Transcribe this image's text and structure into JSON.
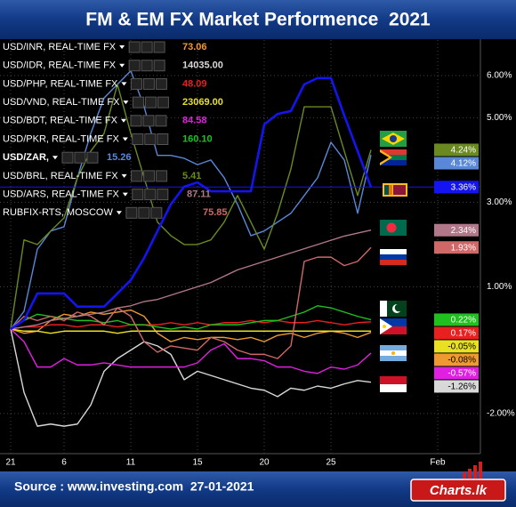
{
  "chart_data": {
    "type": "line",
    "title": "FM & EM FX Market Performence  2021",
    "source": "Source : www.investing.com  27-01-2021",
    "logo": "Charts.lk",
    "categories": [
      "21",
      null,
      null,
      null,
      "6",
      null,
      null,
      null,
      null,
      "11",
      null,
      null,
      null,
      null,
      "15",
      null,
      null,
      null,
      null,
      "20",
      null,
      null,
      null,
      null,
      "25",
      null,
      null,
      null,
      null,
      null,
      null,
      null,
      "Feb"
    ],
    "ylim": [
      -2.95,
      6.84
    ],
    "yticks": [
      {
        "value": 6,
        "label": "6.00%"
      },
      {
        "value": 5,
        "label": "5.00%"
      },
      {
        "value": 3,
        "label": "3.00%"
      },
      {
        "value": 1,
        "label": "1.00%"
      },
      {
        "value": -2,
        "label": "-2.00%"
      }
    ],
    "grid": true,
    "series": [
      {
        "name": "USD/INR, REAL-TIME FX",
        "quote": "73.06",
        "color": "#ee9a30",
        "end_label": "-0.08%",
        "values": [
          0,
          -0.1,
          -0.05,
          0.2,
          0.35,
          0.3,
          0.4,
          0.35,
          0.4,
          0.45,
          0.3,
          -0.1,
          -0.3,
          -0.2,
          -0.25,
          -0.2,
          -0.2,
          -0.25,
          -0.2,
          -0.3,
          -0.15,
          -0.1,
          -0.2,
          -0.1,
          -0.05,
          -0.1,
          -0.2,
          -0.08,
          null,
          null,
          null,
          null,
          null
        ]
      },
      {
        "name": "USD/IDR, REAL-TIME FX",
        "quote": "14035.00",
        "color": "#d8d8d8",
        "end_label": "-1.26%",
        "values": [
          0,
          -1.5,
          -2.3,
          -2.25,
          -2.3,
          -2.25,
          -1.8,
          -1.0,
          -0.7,
          -0.5,
          -0.3,
          -0.4,
          -0.6,
          -1.2,
          -1.0,
          -1.1,
          -1.2,
          -1.3,
          -1.4,
          -1.45,
          -1.6,
          -1.4,
          -1.45,
          -1.35,
          -1.4,
          -1.3,
          -1.22,
          -1.26,
          null,
          null,
          null,
          null,
          null
        ]
      },
      {
        "name": "USD/PHP, REAL-TIME FX",
        "quote": "48.09",
        "color": "#e82020",
        "end_label": "0.17%",
        "values": [
          0,
          0.05,
          0.05,
          0.1,
          0.1,
          0.05,
          0.1,
          0.1,
          0.05,
          0.1,
          0.1,
          0.1,
          0.15,
          0.1,
          0.15,
          0.1,
          0.15,
          0.15,
          0.2,
          0.15,
          0.2,
          0.15,
          0.15,
          0.2,
          0.15,
          0.1,
          0.15,
          0.17,
          null,
          null,
          null,
          null,
          null
        ]
      },
      {
        "name": "USD/VND, REAL-TIME FX",
        "quote": "23069.00",
        "color": "#e8e020",
        "end_label": "-0.05%",
        "values": [
          0,
          -0.05,
          -0.05,
          -0.1,
          -0.05,
          -0.05,
          -0.05,
          -0.05,
          -0.1,
          -0.05,
          -0.05,
          -0.05,
          -0.05,
          -0.05,
          -0.05,
          -0.05,
          -0.05,
          -0.05,
          -0.05,
          -0.05,
          -0.05,
          -0.05,
          -0.05,
          -0.05,
          -0.05,
          -0.05,
          -0.05,
          -0.05,
          null,
          null,
          null,
          null,
          null
        ]
      },
      {
        "name": "USD/BDT, REAL-TIME FX",
        "quote": "84.58",
        "color": "#e020e0",
        "end_label": "-0.57%",
        "values": [
          0,
          -0.3,
          -0.9,
          -0.9,
          -0.7,
          -0.85,
          -0.85,
          -0.8,
          -0.85,
          -0.9,
          -0.9,
          -0.9,
          -0.9,
          -0.9,
          -0.8,
          -0.5,
          -0.35,
          -0.7,
          -0.7,
          -0.75,
          -0.9,
          -0.9,
          -1.0,
          -1.05,
          -0.9,
          -0.95,
          -0.85,
          -0.57,
          null,
          null,
          null,
          null,
          null
        ]
      },
      {
        "name": "USD/PKR, REAL-TIME FX",
        "quote": "160.10",
        "color": "#20c020",
        "end_label": "0.22%",
        "values": [
          0,
          0.2,
          0.35,
          0.3,
          0.25,
          0.2,
          0.2,
          0.15,
          0.2,
          0.1,
          0.1,
          0.05,
          0.0,
          0.05,
          0.0,
          0.1,
          0.1,
          0.1,
          0.15,
          0.2,
          0.2,
          0.3,
          0.4,
          0.55,
          0.5,
          0.4,
          0.3,
          0.22,
          null,
          null,
          null,
          null,
          null
        ]
      },
      {
        "name": "USD/ZAR,",
        "quote": "15.26",
        "color": "#5a88d8",
        "end_label": "4.12%",
        "values": [
          0,
          0.42,
          1.89,
          2.32,
          2.42,
          3.58,
          4.63,
          5.47,
          5.79,
          6.11,
          5.26,
          4.11,
          4.11,
          4.04,
          3.89,
          4.0,
          3.58,
          2.95,
          2.21,
          2.32,
          2.53,
          2.74,
          3.16,
          3.58,
          4.42,
          4.0,
          2.74,
          4.12,
          null,
          null,
          null,
          null,
          null
        ]
      },
      {
        "name": "USD/BRL, REAL-TIME FX",
        "quote": "5.41",
        "color": "#6a8a20",
        "end_label": "4.24%",
        "values": [
          0,
          2.11,
          2.0,
          2.32,
          2.63,
          3.58,
          4.21,
          4.63,
          5.79,
          4.63,
          3.58,
          2.53,
          2.21,
          2.0,
          2.0,
          2.11,
          2.53,
          3.16,
          2.53,
          1.89,
          2.74,
          3.79,
          5.26,
          5.26,
          5.26,
          4.21,
          3.16,
          4.24,
          null,
          null,
          null,
          null,
          null
        ]
      },
      {
        "name": "USD/ARS, REAL-TIME FX",
        "quote": "87.11",
        "color": "#b07888",
        "end_label": "2.34%",
        "values": [
          0,
          0.05,
          0.1,
          0.2,
          0.25,
          0.3,
          0.35,
          0.4,
          0.5,
          0.55,
          0.65,
          0.7,
          0.8,
          0.9,
          1.0,
          1.1,
          1.25,
          1.4,
          1.5,
          1.6,
          1.7,
          1.8,
          1.9,
          2.0,
          2.1,
          2.2,
          2.27,
          2.34,
          null,
          null,
          null,
          null,
          null
        ]
      },
      {
        "name": "RUBFIX-RTS, MOSCOW",
        "quote": "75.85",
        "color": "#d06868",
        "end_label": "1.93%",
        "values": [
          0,
          0.3,
          0.2,
          0.3,
          0.2,
          0.4,
          0.3,
          0.1,
          0.5,
          0.3,
          -0.3,
          -0.55,
          -0.4,
          -0.45,
          -0.5,
          -0.2,
          -0.3,
          -0.5,
          -0.6,
          -0.6,
          -0.7,
          -0.4,
          1.6,
          1.7,
          1.7,
          1.5,
          1.6,
          1.93,
          null,
          null,
          null,
          null,
          null
        ]
      },
      {
        "color": "#1414f0",
        "end_label": "3.36%",
        "values": [
          0,
          0.21,
          0.84,
          0.84,
          0.84,
          0.53,
          0.53,
          0.53,
          0.84,
          1.16,
          1.68,
          2.32,
          2.95,
          3.37,
          3.47,
          3.26,
          3.26,
          3.26,
          3.26,
          4.84,
          5.09,
          5.16,
          5.79,
          5.94,
          5.94,
          5.05,
          4.21,
          3.36,
          null,
          null,
          null,
          null,
          null
        ]
      }
    ]
  }
}
